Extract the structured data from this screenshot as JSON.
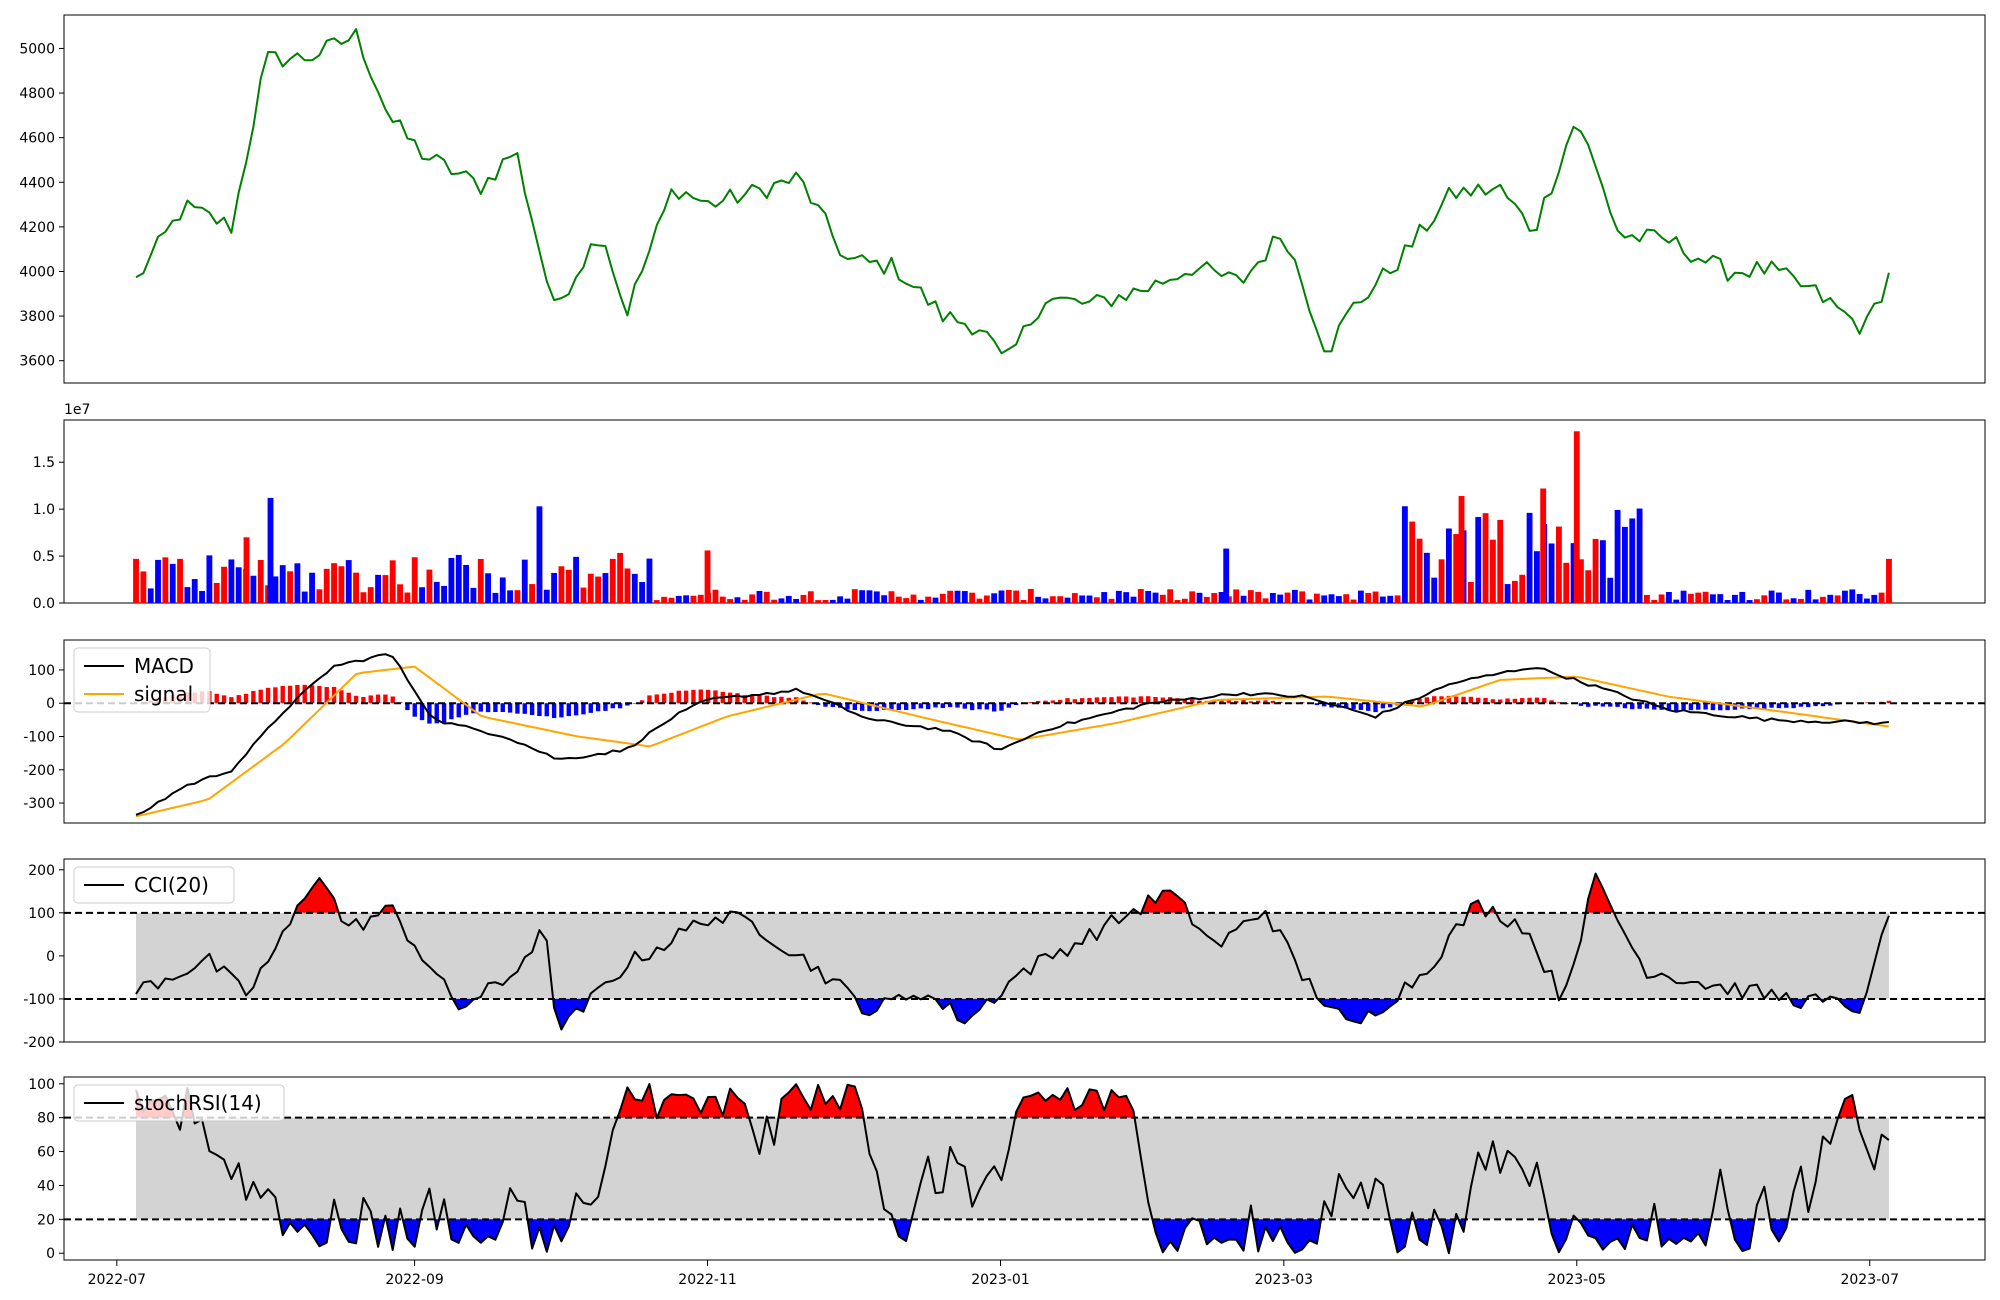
{
  "chart_data": [
    {
      "type": "line",
      "name": "price",
      "color": "#008000",
      "ylim": [
        3500,
        5150
      ],
      "yticks": [
        3600,
        3800,
        4000,
        4200,
        4400,
        4600,
        4800,
        5000
      ],
      "x": [
        "2022-07-05",
        "2022-07-15",
        "2022-07-25",
        "2022-08-01",
        "2022-08-10",
        "2022-08-20",
        "2022-08-27",
        "2022-09-03",
        "2022-09-15",
        "2022-09-22",
        "2022-09-30",
        "2022-10-10",
        "2022-10-15",
        "2022-10-25",
        "2022-11-01",
        "2022-11-10",
        "2022-11-20",
        "2022-11-30",
        "2022-12-10",
        "2022-12-20",
        "2022-12-28",
        "2023-01-02",
        "2023-01-10",
        "2023-01-20",
        "2023-02-01",
        "2023-02-10",
        "2023-02-20",
        "2023-03-01",
        "2023-03-10",
        "2023-03-15",
        "2023-03-25",
        "2023-04-05",
        "2023-04-15",
        "2023-04-22",
        "2023-05-01",
        "2023-05-10",
        "2023-05-20",
        "2023-06-01",
        "2023-06-10",
        "2023-06-20",
        "2023-06-30",
        "2023-07-05"
      ],
      "values": [
        3960,
        4290,
        4200,
        4950,
        4960,
        5060,
        4680,
        4520,
        4380,
        4550,
        3830,
        4190,
        3810,
        4380,
        4300,
        4350,
        4420,
        4050,
        4020,
        3800,
        3750,
        3580,
        3880,
        3850,
        3930,
        4020,
        3950,
        4180,
        3640,
        3830,
        4050,
        4350,
        4370,
        4180,
        4690,
        4160,
        4140,
        4000,
        4010,
        3900,
        3740,
        3980
      ]
    },
    {
      "type": "bar",
      "name": "volume",
      "scale_label": "1e7",
      "ylim": [
        0,
        1.95
      ],
      "yticks": [
        0.0,
        0.5,
        1.0,
        1.5
      ],
      "ytick_labels": [
        "0.0",
        "0.5",
        "1.0",
        "1.5"
      ],
      "up_color": "#ff0000",
      "down_color": "#0000ff",
      "x": [
        "2022-07-28",
        "2022-08-02",
        "2022-09-27",
        "2022-11-01",
        "2023-02-17",
        "2023-04-07",
        "2023-04-24",
        "2023-05-01"
      ],
      "values": [
        0.7,
        1.12,
        1.03,
        0.56,
        0.58,
        1.14,
        1.22,
        1.83
      ],
      "directions": [
        "up",
        "down",
        "down",
        "up",
        "down",
        "up",
        "up",
        "up"
      ]
    },
    {
      "type": "line",
      "name": "macd",
      "ylim": [
        -360,
        190
      ],
      "yticks": [
        -300,
        -200,
        -100,
        0,
        100
      ],
      "legend": [
        {
          "name": "MACD",
          "color": "#000000"
        },
        {
          "name": "signal",
          "color": "#ffa500"
        }
      ],
      "hist_up_color": "#ff0000",
      "hist_down_color": "#0000ff",
      "zero_line": 0
    },
    {
      "type": "line",
      "name": "cci",
      "ylim": [
        -200,
        225
      ],
      "yticks": [
        -200,
        -100,
        0,
        100,
        200
      ],
      "legend": [
        {
          "name": "CCI(20)",
          "color": "#000000"
        }
      ],
      "bands": [
        -100,
        100
      ],
      "band_fill": "#d3d3d3",
      "over_color": "#ff0000",
      "under_color": "#0000ff"
    },
    {
      "type": "line",
      "name": "stochrsi",
      "ylim": [
        -4,
        104
      ],
      "yticks": [
        0,
        20,
        40,
        60,
        80,
        100
      ],
      "legend": [
        {
          "name": "stochRSI(14)",
          "color": "#000000"
        }
      ],
      "bands": [
        20,
        80
      ],
      "band_fill": "#d3d3d3",
      "over_color": "#ff0000",
      "under_color": "#0000ff"
    }
  ],
  "x_axis": {
    "start": "2022-06-20",
    "end": "2023-07-25",
    "ticks": [
      "2022-07",
      "2022-09",
      "2022-11",
      "2023-01",
      "2023-03",
      "2023-05",
      "2023-07"
    ]
  }
}
